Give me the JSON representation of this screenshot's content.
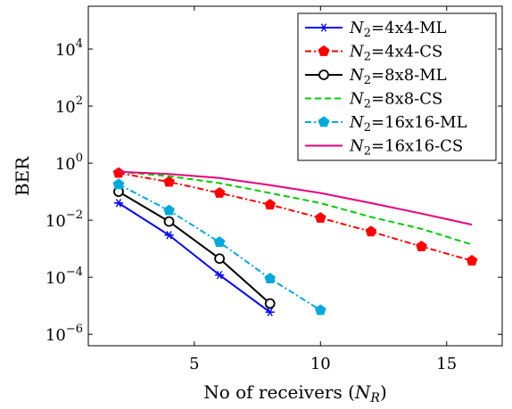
{
  "chart_data": {
    "type": "line",
    "xlabel": "No of receivers (",
    "xlabel_symbol": "N",
    "xlabel_sub": "R",
    "xlabel_close": ")",
    "ylabel": "BER",
    "xlim": [
      0.8,
      17.2
    ],
    "ylim_log10": [
      -6.4,
      5.5
    ],
    "yscale": "log",
    "grid": false,
    "legend_position": "top-right",
    "x_ticks": [
      {
        "value": 5,
        "label": "5"
      },
      {
        "value": 10,
        "label": "10"
      },
      {
        "value": 15,
        "label": "15"
      }
    ],
    "y_ticks": [
      {
        "exp": 4,
        "base": "10",
        "sup": "4"
      },
      {
        "exp": 2,
        "base": "10",
        "sup": "2"
      },
      {
        "exp": 0,
        "base": "10",
        "sup": "0"
      },
      {
        "exp": -2,
        "base": "10",
        "sup": "−2"
      },
      {
        "exp": -4,
        "base": "10",
        "sup": "−4"
      },
      {
        "exp": -6,
        "base": "10",
        "sup": "−6"
      }
    ],
    "series": [
      {
        "name_symbol": "N",
        "name_sub": "2",
        "name_rest": "=4x4-ML",
        "color": "#0000ff",
        "dash": "solid",
        "marker": "asterisk",
        "x": [
          2,
          4,
          6,
          8
        ],
        "y": [
          0.04,
          0.003,
          0.00012,
          6e-06
        ]
      },
      {
        "name_symbol": "N",
        "name_sub": "2",
        "name_rest": "=4x4-CS",
        "color": "#ff0000",
        "dash": "dashdot",
        "marker": "pentagon",
        "x": [
          2,
          4,
          6,
          8,
          10,
          12,
          14,
          16
        ],
        "y": [
          0.45,
          0.22,
          0.09,
          0.035,
          0.012,
          0.004,
          0.0012,
          0.00038
        ]
      },
      {
        "name_symbol": "N",
        "name_sub": "2",
        "name_rest": "=8x8-ML",
        "color": "#000000",
        "dash": "solid",
        "marker": "circle",
        "x": [
          2,
          4,
          6,
          8
        ],
        "y": [
          0.1,
          0.009,
          0.00045,
          1.2e-05
        ]
      },
      {
        "name_symbol": "N",
        "name_sub": "2",
        "name_rest": "=8x8-CS",
        "color": "#00cc00",
        "dash": "dashed",
        "marker": "none",
        "x": [
          2,
          4,
          6,
          8,
          10,
          12,
          14,
          16
        ],
        "y": [
          0.5,
          0.35,
          0.2,
          0.09,
          0.04,
          0.013,
          0.005,
          0.0014
        ]
      },
      {
        "name_symbol": "N",
        "name_sub": "2",
        "name_rest": "=16x16-ML",
        "color": "#00aadd",
        "dash": "dashdot",
        "marker": "pentagon",
        "x": [
          2,
          4,
          6,
          8,
          10
        ],
        "y": [
          0.18,
          0.022,
          0.0017,
          9e-05,
          7e-06
        ]
      },
      {
        "name_symbol": "N",
        "name_sub": "2",
        "name_rest": "=16x16-CS",
        "color": "#e6007e",
        "dash": "solid",
        "marker": "none",
        "x": [
          2,
          4,
          6,
          8,
          10,
          12,
          14,
          16
        ],
        "y": [
          0.5,
          0.42,
          0.3,
          0.17,
          0.09,
          0.04,
          0.017,
          0.007
        ]
      }
    ]
  }
}
